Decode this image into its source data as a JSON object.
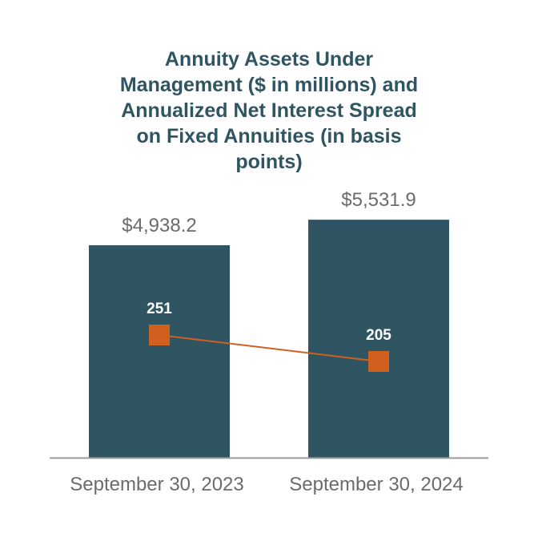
{
  "chart_data": {
    "type": "bar",
    "title_lines": [
      "Annuity Assets Under",
      "Management ($ in millions) and",
      "Annualized Net Interest Spread",
      "on Fixed Annuities (in basis",
      "points)"
    ],
    "categories": [
      "September 30, 2023",
      "September 30, 2024"
    ],
    "series": [
      {
        "type": "bar",
        "values": [
          4938.2,
          5531.9
        ],
        "labels": [
          "$4,938.2",
          "$5,531.9"
        ],
        "color": "#2f5563"
      },
      {
        "type": "line",
        "values": [
          251,
          205
        ],
        "labels": [
          "251",
          "205"
        ],
        "color": "#d0601e"
      }
    ],
    "legend": "none",
    "grid": false
  }
}
